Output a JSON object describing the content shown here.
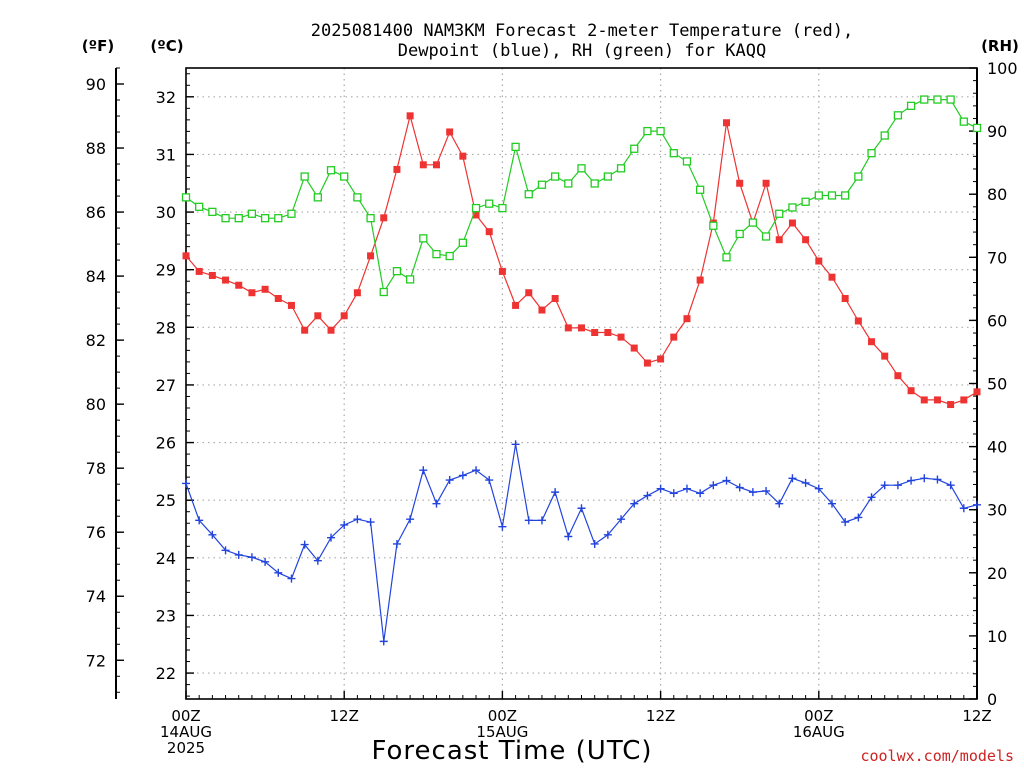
{
  "chart_data": {
    "type": "line",
    "title_line1": "2025081400 NAM3KM Forecast 2-meter Temperature (red),",
    "title_line2": "Dewpoint (blue), RH (green) for KAQQ",
    "xlabel": "Forecast Time (UTC)",
    "credit": "coolwx.com/models",
    "units": {
      "fahrenheit": "(ºF)",
      "celsius": "(ºC)",
      "rh": "(RH)"
    },
    "x_ticks": [
      {
        "h": 0,
        "l1": "00Z",
        "l2": "14AUG",
        "l3": "2025"
      },
      {
        "h": 12,
        "l1": "12Z",
        "l2": "",
        "l3": ""
      },
      {
        "h": 24,
        "l1": "00Z",
        "l2": "15AUG",
        "l3": ""
      },
      {
        "h": 36,
        "l1": "12Z",
        "l2": "",
        "l3": ""
      },
      {
        "h": 48,
        "l1": "00Z",
        "l2": "16AUG",
        "l3": ""
      },
      {
        "h": 60,
        "l1": "12Z",
        "l2": "",
        "l3": ""
      }
    ],
    "xlim": [
      0,
      60
    ],
    "celsius_ticks": [
      "22",
      "23",
      "24",
      "25",
      "26",
      "27",
      "28",
      "29",
      "30",
      "31",
      "32"
    ],
    "ylim_celsius": [
      21.55,
      32.5
    ],
    "fahrenheit_ticks": [
      "72",
      "74",
      "76",
      "78",
      "80",
      "82",
      "84",
      "86",
      "88",
      "90"
    ],
    "rh_ticks": [
      "0",
      "10",
      "20",
      "30",
      "40",
      "50",
      "60",
      "70",
      "80",
      "90",
      "100"
    ],
    "ylim_rh": [
      0,
      100
    ],
    "colors": {
      "temperature": "#ee3333",
      "dewpoint": "#2244dd",
      "rh": "#22cc22",
      "grid": "#aaaaaa",
      "credit": "#cc2222"
    },
    "series": [
      {
        "name": "Temperature",
        "key": "temperature",
        "axis": "celsius",
        "marker": "filled-square",
        "values": [
          29.24,
          28.97,
          28.9,
          28.82,
          28.73,
          28.6,
          28.66,
          28.5,
          28.38,
          27.95,
          28.2,
          27.95,
          28.2,
          28.6,
          29.24,
          29.9,
          30.74,
          31.67,
          30.82,
          30.82,
          31.39,
          30.97,
          29.95,
          29.66,
          28.97,
          28.38,
          28.6,
          28.3,
          28.5,
          27.99,
          27.99,
          27.91,
          27.91,
          27.83,
          27.64,
          27.38,
          27.45,
          27.83,
          28.15,
          28.82,
          29.81,
          31.55,
          30.5,
          29.81,
          30.5,
          29.52,
          29.81,
          29.52,
          29.15,
          28.87,
          28.5,
          28.11,
          27.75,
          27.5,
          27.16,
          26.9,
          26.74,
          26.74,
          26.66,
          26.74,
          26.88
        ]
      },
      {
        "name": "Dewpoint",
        "key": "dewpoint",
        "axis": "celsius",
        "marker": "plus",
        "values": [
          25.29,
          24.65,
          24.4,
          24.13,
          24.05,
          24.01,
          23.93,
          23.74,
          23.64,
          24.23,
          23.95,
          24.35,
          24.57,
          24.67,
          24.62,
          22.55,
          24.24,
          24.67,
          25.52,
          24.94,
          25.35,
          25.43,
          25.52,
          25.35,
          24.54,
          25.97,
          24.65,
          24.65,
          25.14,
          24.37,
          24.86,
          24.24,
          24.4,
          24.67,
          24.94,
          25.08,
          25.2,
          25.12,
          25.2,
          25.12,
          25.26,
          25.34,
          25.22,
          25.14,
          25.16,
          24.94,
          25.38,
          25.3,
          25.2,
          24.94,
          24.62,
          24.7,
          25.05,
          25.26,
          25.26,
          25.34,
          25.38,
          25.36,
          25.26,
          24.86,
          24.92
        ]
      },
      {
        "name": "RH",
        "key": "rh",
        "axis": "rh",
        "marker": "open-square",
        "values": [
          79.5,
          78.0,
          77.2,
          76.2,
          76.2,
          76.9,
          76.2,
          76.2,
          76.9,
          82.8,
          79.5,
          83.8,
          82.8,
          79.5,
          76.2,
          64.5,
          67.8,
          66.5,
          73.0,
          70.5,
          70.2,
          72.3,
          77.8,
          78.5,
          77.8,
          87.5,
          80.0,
          81.5,
          82.8,
          81.7,
          84.1,
          81.7,
          82.8,
          84.1,
          87.2,
          90.0,
          90.0,
          86.5,
          85.2,
          80.7,
          75.0,
          70.0,
          73.7,
          75.5,
          73.3,
          76.9,
          77.9,
          78.8,
          79.8,
          79.8,
          79.8,
          82.8,
          86.5,
          89.3,
          92.5,
          94.0,
          95.0,
          95.0,
          95.0,
          91.5,
          90.5
        ]
      }
    ]
  }
}
